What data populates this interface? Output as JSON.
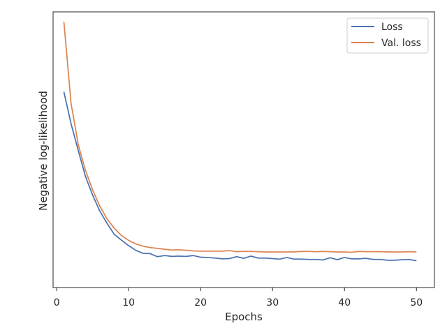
{
  "chart_data": {
    "type": "line",
    "xlabel": "Epochs",
    "ylabel": "Negative log-likelihood",
    "xlim": [
      -0.5,
      52.5
    ],
    "ylim": [
      0.0,
      1.0
    ],
    "yticks_shown": false,
    "xticks": [
      0,
      10,
      20,
      30,
      40,
      50
    ],
    "grid": false,
    "legend_position": "top-right",
    "x": [
      1,
      2,
      3,
      4,
      5,
      6,
      7,
      8,
      9,
      10,
      11,
      12,
      13,
      14,
      15,
      16,
      17,
      18,
      19,
      20,
      21,
      22,
      23,
      24,
      25,
      26,
      27,
      28,
      29,
      30,
      31,
      32,
      33,
      34,
      35,
      36,
      37,
      38,
      39,
      40,
      41,
      42,
      43,
      44,
      45,
      46,
      47,
      48,
      49,
      50
    ],
    "series": [
      {
        "name": "Loss",
        "color": "#4c72b0",
        "values": [
          0.71,
          0.594,
          0.497,
          0.403,
          0.335,
          0.277,
          0.233,
          0.193,
          0.172,
          0.152,
          0.135,
          0.124,
          0.123,
          0.112,
          0.116,
          0.113,
          0.114,
          0.113,
          0.116,
          0.11,
          0.109,
          0.107,
          0.104,
          0.105,
          0.112,
          0.106,
          0.114,
          0.107,
          0.107,
          0.105,
          0.103,
          0.109,
          0.103,
          0.103,
          0.102,
          0.102,
          0.1,
          0.108,
          0.101,
          0.109,
          0.104,
          0.104,
          0.106,
          0.102,
          0.102,
          0.099,
          0.099,
          0.101,
          0.102,
          0.097
        ]
      },
      {
        "name": "Val. loss",
        "color": "#dd8452",
        "values": [
          0.964,
          0.668,
          0.518,
          0.425,
          0.354,
          0.295,
          0.249,
          0.215,
          0.189,
          0.171,
          0.158,
          0.15,
          0.145,
          0.142,
          0.139,
          0.136,
          0.137,
          0.135,
          0.133,
          0.132,
          0.132,
          0.132,
          0.132,
          0.134,
          0.13,
          0.131,
          0.131,
          0.13,
          0.129,
          0.129,
          0.129,
          0.129,
          0.129,
          0.131,
          0.131,
          0.13,
          0.131,
          0.13,
          0.129,
          0.129,
          0.128,
          0.131,
          0.13,
          0.13,
          0.13,
          0.129,
          0.129,
          0.129,
          0.13,
          0.129
        ]
      }
    ]
  }
}
